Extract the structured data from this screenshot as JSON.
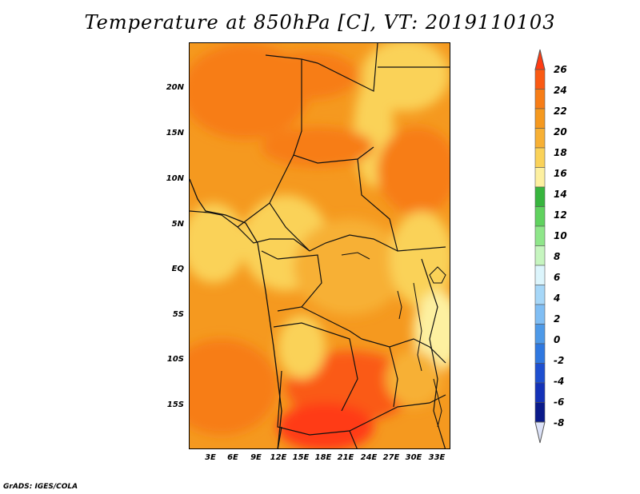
{
  "title": "Temperature at 850hPa [C], VT: 2019110103",
  "credit": "GrADS: IGES/COLA",
  "lat_labels": [
    "20N",
    "15N",
    "10N",
    "5N",
    "EQ",
    "5S",
    "10S",
    "15S"
  ],
  "lon_labels": [
    "3E",
    "6E",
    "9E",
    "12E",
    "15E",
    "18E",
    "21E",
    "24E",
    "27E",
    "30E",
    "33E"
  ],
  "colorbar": {
    "labels": [
      "26",
      "24",
      "22",
      "20",
      "18",
      "16",
      "14",
      "12",
      "10",
      "8",
      "6",
      "4",
      "2",
      "0",
      "-2",
      "-4",
      "-6",
      "-8"
    ],
    "colors": [
      "#ff3b12",
      "#fa5a13",
      "#f77d17",
      "#f5991f",
      "#f7b034",
      "#fad259",
      "#fdf0a0",
      "#37b53e",
      "#60d25f",
      "#8fe68a",
      "#c6f5bf",
      "#dcf5fc",
      "#a6d7f8",
      "#80bef4",
      "#4e9ae8",
      "#2f78e0",
      "#1e4fd0",
      "#1432b8",
      "#0a1a8a",
      "#dce2f8"
    ]
  }
}
